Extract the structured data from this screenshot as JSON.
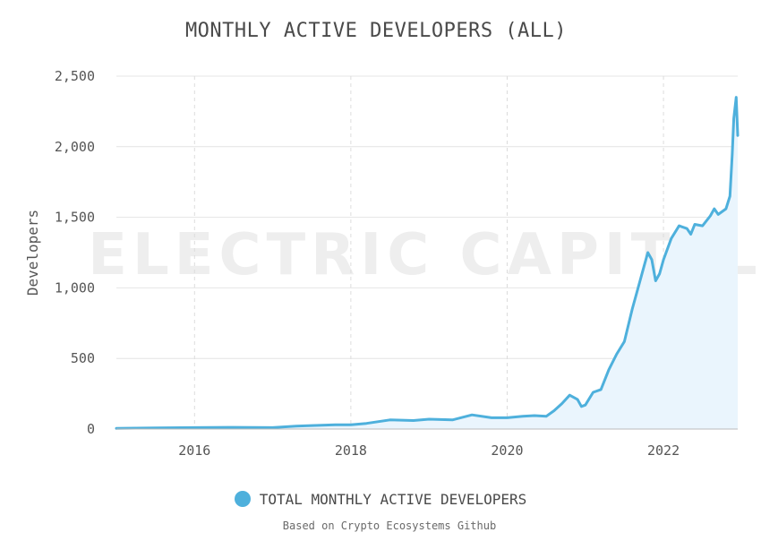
{
  "chart_data": {
    "type": "area",
    "title": "MONTHLY ACTIVE DEVELOPERS (ALL)",
    "xlabel": "",
    "ylabel": "Developers",
    "xlim": [
      2015.0,
      2022.95
    ],
    "ylim": [
      0,
      2500
    ],
    "x_ticks": [
      2016,
      2018,
      2020,
      2022
    ],
    "x_tick_labels": [
      "2016",
      "2018",
      "2020",
      "2022"
    ],
    "y_ticks": [
      0,
      500,
      1000,
      1500,
      2000,
      2500
    ],
    "y_tick_labels": [
      "0",
      "500",
      "1,000",
      "1,500",
      "2,000",
      "2,500"
    ],
    "grid": true,
    "legend_position": "bottom",
    "watermark": "ELECTRIC CAPITAL",
    "series": [
      {
        "name": "TOTAL MONTHLY ACTIVE DEVELOPERS",
        "color": "#4eb0dc",
        "fill": "#eaf5fd",
        "x": [
          2015.0,
          2015.5,
          2016.0,
          2016.5,
          2017.0,
          2017.3,
          2017.5,
          2017.8,
          2018.0,
          2018.2,
          2018.5,
          2018.8,
          2019.0,
          2019.3,
          2019.55,
          2019.8,
          2020.0,
          2020.2,
          2020.35,
          2020.5,
          2020.6,
          2020.7,
          2020.8,
          2020.9,
          2020.95,
          2021.0,
          2021.1,
          2021.2,
          2021.3,
          2021.4,
          2021.5,
          2021.6,
          2021.7,
          2021.75,
          2021.8,
          2021.85,
          2021.9,
          2021.95,
          2022.0,
          2022.1,
          2022.2,
          2022.3,
          2022.35,
          2022.4,
          2022.5,
          2022.6,
          2022.65,
          2022.7,
          2022.8,
          2022.85,
          2022.88,
          2022.9,
          2022.93,
          2022.95
        ],
        "values": [
          5,
          8,
          10,
          12,
          10,
          20,
          25,
          30,
          30,
          40,
          65,
          60,
          70,
          65,
          100,
          80,
          80,
          90,
          95,
          90,
          130,
          180,
          240,
          210,
          160,
          170,
          260,
          280,
          420,
          530,
          620,
          850,
          1050,
          1150,
          1250,
          1200,
          1050,
          1100,
          1200,
          1350,
          1440,
          1420,
          1380,
          1450,
          1440,
          1510,
          1560,
          1520,
          1560,
          1650,
          1950,
          2200,
          2350,
          2080
        ]
      }
    ],
    "legend": [
      "TOTAL MONTHLY ACTIVE DEVELOPERS"
    ],
    "source_note": "Based on Crypto Ecosystems Github"
  }
}
